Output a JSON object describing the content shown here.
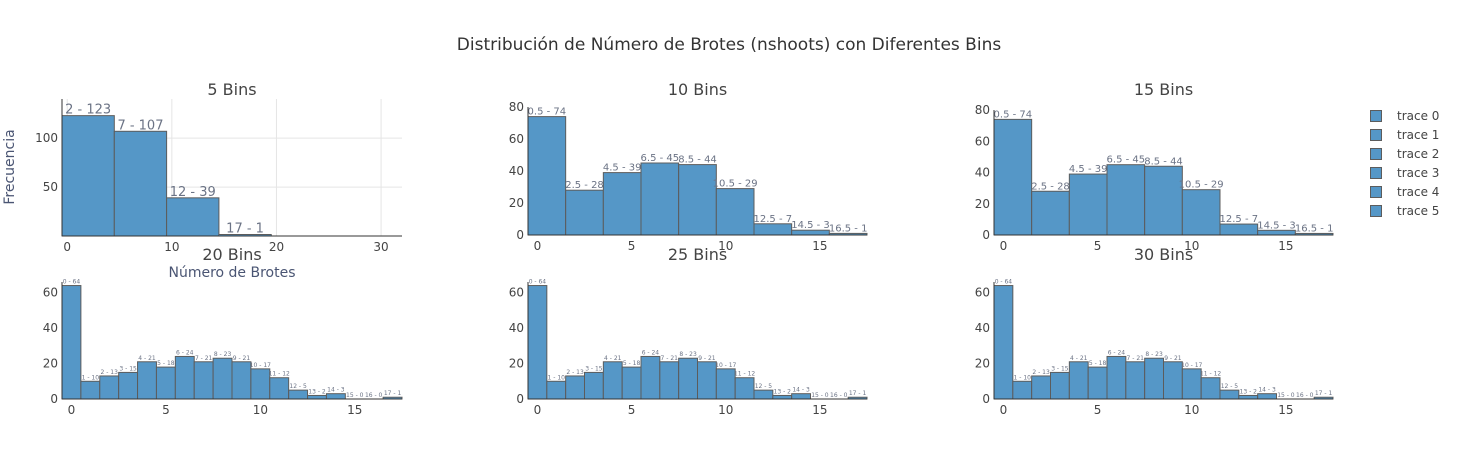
{
  "figure": {
    "title": "Distribución de Número de Brotes (nshoots) con Diferentes Bins",
    "xlabel": "Número de Brotes",
    "ylabel": "Frecuencia"
  },
  "colors": {
    "bar_fill": "#5597c7",
    "bar_stroke": "#5c5c5c",
    "grid": "#e5e5e5",
    "text": "#444444",
    "label": "#6b7385"
  },
  "legend": [
    {
      "label": "trace 0"
    },
    {
      "label": "trace 1"
    },
    {
      "label": "trace 2"
    },
    {
      "label": "trace 3"
    },
    {
      "label": "trace 4"
    },
    {
      "label": "trace 5"
    }
  ],
  "chart_data": [
    {
      "type": "bar",
      "title": "5 Bins",
      "xlim": [
        -0.5,
        32
      ],
      "ylim": [
        0,
        140
      ],
      "xticks": [
        0,
        10,
        20,
        30
      ],
      "yticks": [
        50,
        100
      ],
      "grid": true,
      "bins": [
        {
          "x0": -0.5,
          "x1": 4.5,
          "value": 123,
          "label": "2 - 123"
        },
        {
          "x0": 4.5,
          "x1": 9.5,
          "value": 107,
          "label": "7 - 107"
        },
        {
          "x0": 9.5,
          "x1": 14.5,
          "value": 39,
          "label": "12 - 39"
        },
        {
          "x0": 14.5,
          "x1": 19.5,
          "value": 1,
          "label": "17 - 1"
        }
      ]
    },
    {
      "type": "bar",
      "title": "10 Bins",
      "xlim": [
        -0.5,
        17.5
      ],
      "ylim": [
        0,
        80
      ],
      "xticks": [
        0,
        5,
        10,
        15
      ],
      "yticks": [
        0,
        20,
        40,
        60,
        80
      ],
      "grid": false,
      "bins": [
        {
          "x0": -0.5,
          "x1": 1.5,
          "value": 74,
          "label": "0.5 - 74"
        },
        {
          "x0": 1.5,
          "x1": 3.5,
          "value": 28,
          "label": "2.5 - 28"
        },
        {
          "x0": 3.5,
          "x1": 5.5,
          "value": 39,
          "label": "4.5 - 39"
        },
        {
          "x0": 5.5,
          "x1": 7.5,
          "value": 45,
          "label": "6.5 - 45"
        },
        {
          "x0": 7.5,
          "x1": 9.5,
          "value": 44,
          "label": "8.5 - 44"
        },
        {
          "x0": 9.5,
          "x1": 11.5,
          "value": 29,
          "label": "10.5 - 29"
        },
        {
          "x0": 11.5,
          "x1": 13.5,
          "value": 7,
          "label": "12.5 - 7"
        },
        {
          "x0": 13.5,
          "x1": 15.5,
          "value": 3,
          "label": "14.5 - 3"
        },
        {
          "x0": 15.5,
          "x1": 17.5,
          "value": 1,
          "label": "16.5 - 1"
        }
      ]
    },
    {
      "type": "bar",
      "title": "15 Bins",
      "xlim": [
        -0.5,
        17.5
      ],
      "ylim": [
        0,
        80
      ],
      "xticks": [
        0,
        5,
        10,
        15
      ],
      "yticks": [
        0,
        20,
        40,
        60,
        80
      ],
      "grid": false,
      "bins": [
        {
          "x0": -0.5,
          "x1": 1.5,
          "value": 74,
          "label": "0.5 - 74"
        },
        {
          "x0": 1.5,
          "x1": 3.5,
          "value": 28,
          "label": "2.5 - 28"
        },
        {
          "x0": 3.5,
          "x1": 5.5,
          "value": 39,
          "label": "4.5 - 39"
        },
        {
          "x0": 5.5,
          "x1": 7.5,
          "value": 45,
          "label": "6.5 - 45"
        },
        {
          "x0": 7.5,
          "x1": 9.5,
          "value": 44,
          "label": "8.5 - 44"
        },
        {
          "x0": 9.5,
          "x1": 11.5,
          "value": 29,
          "label": "10.5 - 29"
        },
        {
          "x0": 11.5,
          "x1": 13.5,
          "value": 7,
          "label": "12.5 - 7"
        },
        {
          "x0": 13.5,
          "x1": 15.5,
          "value": 3,
          "label": "14.5 - 3"
        },
        {
          "x0": 15.5,
          "x1": 17.5,
          "value": 1,
          "label": "16.5 - 1"
        }
      ]
    },
    {
      "type": "bar",
      "title": "20 Bins",
      "xlim": [
        -0.5,
        17.5
      ],
      "ylim": [
        0,
        66
      ],
      "xticks": [
        0,
        5,
        10,
        15
      ],
      "yticks": [
        0,
        20,
        40,
        60
      ],
      "grid": false,
      "bins": [
        {
          "x0": -0.5,
          "x1": 0.5,
          "value": 64,
          "label": "0 - 64"
        },
        {
          "x0": 0.5,
          "x1": 1.5,
          "value": 10,
          "label": "1 - 10"
        },
        {
          "x0": 1.5,
          "x1": 2.5,
          "value": 13,
          "label": "2 - 13"
        },
        {
          "x0": 2.5,
          "x1": 3.5,
          "value": 15,
          "label": "3 - 15"
        },
        {
          "x0": 3.5,
          "x1": 4.5,
          "value": 21,
          "label": "4 - 21"
        },
        {
          "x0": 4.5,
          "x1": 5.5,
          "value": 18,
          "label": "5 - 18"
        },
        {
          "x0": 5.5,
          "x1": 6.5,
          "value": 24,
          "label": "6 - 24"
        },
        {
          "x0": 6.5,
          "x1": 7.5,
          "value": 21,
          "label": "7 - 21"
        },
        {
          "x0": 7.5,
          "x1": 8.5,
          "value": 23,
          "label": "8 - 23"
        },
        {
          "x0": 8.5,
          "x1": 9.5,
          "value": 21,
          "label": "9 - 21"
        },
        {
          "x0": 9.5,
          "x1": 10.5,
          "value": 17,
          "label": "10 - 17"
        },
        {
          "x0": 10.5,
          "x1": 11.5,
          "value": 12,
          "label": "11 - 12"
        },
        {
          "x0": 11.5,
          "x1": 12.5,
          "value": 5,
          "label": "12 - 5"
        },
        {
          "x0": 12.5,
          "x1": 13.5,
          "value": 2,
          "label": "13 - 2"
        },
        {
          "x0": 13.5,
          "x1": 14.5,
          "value": 3,
          "label": "14 - 3"
        },
        {
          "x0": 14.5,
          "x1": 15.5,
          "value": 0,
          "label": "15 - 0"
        },
        {
          "x0": 15.5,
          "x1": 16.5,
          "value": 0,
          "label": "16 - 0"
        },
        {
          "x0": 16.5,
          "x1": 17.5,
          "value": 1,
          "label": "17 - 1"
        }
      ]
    },
    {
      "type": "bar",
      "title": "25 Bins",
      "xlim": [
        -0.5,
        17.5
      ],
      "ylim": [
        0,
        66
      ],
      "xticks": [
        0,
        5,
        10,
        15
      ],
      "yticks": [
        0,
        20,
        40,
        60
      ],
      "grid": false,
      "bins": [
        {
          "x0": -0.5,
          "x1": 0.5,
          "value": 64,
          "label": "0 - 64"
        },
        {
          "x0": 0.5,
          "x1": 1.5,
          "value": 10,
          "label": "1 - 10"
        },
        {
          "x0": 1.5,
          "x1": 2.5,
          "value": 13,
          "label": "2 - 13"
        },
        {
          "x0": 2.5,
          "x1": 3.5,
          "value": 15,
          "label": "3 - 15"
        },
        {
          "x0": 3.5,
          "x1": 4.5,
          "value": 21,
          "label": "4 - 21"
        },
        {
          "x0": 4.5,
          "x1": 5.5,
          "value": 18,
          "label": "5 - 18"
        },
        {
          "x0": 5.5,
          "x1": 6.5,
          "value": 24,
          "label": "6 - 24"
        },
        {
          "x0": 6.5,
          "x1": 7.5,
          "value": 21,
          "label": "7 - 21"
        },
        {
          "x0": 7.5,
          "x1": 8.5,
          "value": 23,
          "label": "8 - 23"
        },
        {
          "x0": 8.5,
          "x1": 9.5,
          "value": 21,
          "label": "9 - 21"
        },
        {
          "x0": 9.5,
          "x1": 10.5,
          "value": 17,
          "label": "10 - 17"
        },
        {
          "x0": 10.5,
          "x1": 11.5,
          "value": 12,
          "label": "11 - 12"
        },
        {
          "x0": 11.5,
          "x1": 12.5,
          "value": 5,
          "label": "12 - 5"
        },
        {
          "x0": 12.5,
          "x1": 13.5,
          "value": 2,
          "label": "13 - 2"
        },
        {
          "x0": 13.5,
          "x1": 14.5,
          "value": 3,
          "label": "14 - 3"
        },
        {
          "x0": 14.5,
          "x1": 15.5,
          "value": 0,
          "label": "15 - 0"
        },
        {
          "x0": 15.5,
          "x1": 16.5,
          "value": 0,
          "label": "16 - 0"
        },
        {
          "x0": 16.5,
          "x1": 17.5,
          "value": 1,
          "label": "17 - 1"
        }
      ]
    },
    {
      "type": "bar",
      "title": "30 Bins",
      "xlim": [
        -0.5,
        17.5
      ],
      "ylim": [
        0,
        66
      ],
      "xticks": [
        0,
        5,
        10,
        15
      ],
      "yticks": [
        0,
        20,
        40,
        60
      ],
      "grid": false,
      "bins": [
        {
          "x0": -0.5,
          "x1": 0.5,
          "value": 64,
          "label": "0 - 64"
        },
        {
          "x0": 0.5,
          "x1": 1.5,
          "value": 10,
          "label": "1 - 10"
        },
        {
          "x0": 1.5,
          "x1": 2.5,
          "value": 13,
          "label": "2 - 13"
        },
        {
          "x0": 2.5,
          "x1": 3.5,
          "value": 15,
          "label": "3 - 15"
        },
        {
          "x0": 3.5,
          "x1": 4.5,
          "value": 21,
          "label": "4 - 21"
        },
        {
          "x0": 4.5,
          "x1": 5.5,
          "value": 18,
          "label": "5 - 18"
        },
        {
          "x0": 5.5,
          "x1": 6.5,
          "value": 24,
          "label": "6 - 24"
        },
        {
          "x0": 6.5,
          "x1": 7.5,
          "value": 21,
          "label": "7 - 21"
        },
        {
          "x0": 7.5,
          "x1": 8.5,
          "value": 23,
          "label": "8 - 23"
        },
        {
          "x0": 8.5,
          "x1": 9.5,
          "value": 21,
          "label": "9 - 21"
        },
        {
          "x0": 9.5,
          "x1": 10.5,
          "value": 17,
          "label": "10 - 17"
        },
        {
          "x0": 10.5,
          "x1": 11.5,
          "value": 12,
          "label": "11 - 12"
        },
        {
          "x0": 11.5,
          "x1": 12.5,
          "value": 5,
          "label": "12 - 5"
        },
        {
          "x0": 12.5,
          "x1": 13.5,
          "value": 2,
          "label": "13 - 2"
        },
        {
          "x0": 13.5,
          "x1": 14.5,
          "value": 3,
          "label": "14 - 3"
        },
        {
          "x0": 14.5,
          "x1": 15.5,
          "value": 0,
          "label": "15 - 0"
        },
        {
          "x0": 15.5,
          "x1": 16.5,
          "value": 0,
          "label": "16 - 0"
        },
        {
          "x0": 16.5,
          "x1": 17.5,
          "value": 1,
          "label": "17 - 1"
        }
      ]
    }
  ]
}
